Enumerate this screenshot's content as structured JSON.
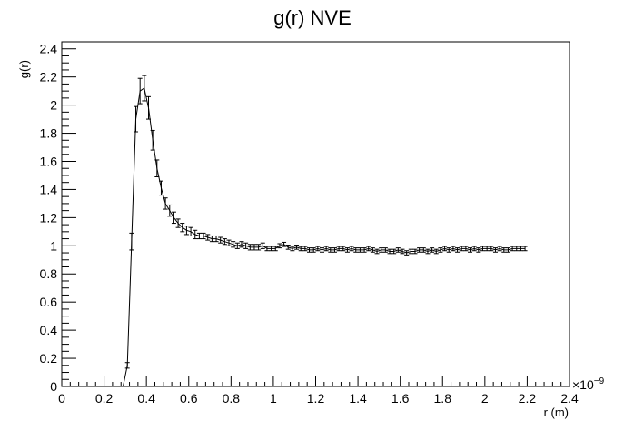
{
  "chart_data": {
    "type": "line",
    "title": "g(r) NVE",
    "xlabel": "r (m)",
    "ylabel": "g(r)",
    "x_exponent_label": "×10",
    "x_exponent_power": "−9",
    "xlim": [
      0,
      2.4
    ],
    "ylim": [
      0,
      2.45
    ],
    "xticks": [
      "0",
      "0.2",
      "0.4",
      "0.6",
      "0.8",
      "1",
      "1.2",
      "1.4",
      "1.6",
      "1.8",
      "2",
      "2.2",
      "2.4"
    ],
    "xtick_values": [
      0,
      0.2,
      0.4,
      0.6,
      0.8,
      1.0,
      1.2,
      1.4,
      1.6,
      1.8,
      2.0,
      2.2,
      2.4
    ],
    "yticks": [
      "0",
      "0.2",
      "0.4",
      "0.6",
      "0.8",
      "1",
      "1.2",
      "1.4",
      "1.6",
      "1.8",
      "2",
      "2.2",
      "2.4"
    ],
    "ytick_values": [
      0,
      0.2,
      0.4,
      0.6,
      0.8,
      1.0,
      1.2,
      1.4,
      1.6,
      1.8,
      2.0,
      2.2,
      2.4
    ],
    "grid": false,
    "series": [
      {
        "x": [
          0.01,
          0.03,
          0.05,
          0.07,
          0.09,
          0.11,
          0.13,
          0.15,
          0.17,
          0.19,
          0.21,
          0.23,
          0.25,
          0.27,
          0.29,
          0.31,
          0.33,
          0.35,
          0.37,
          0.39,
          0.41,
          0.43,
          0.45,
          0.47,
          0.49,
          0.51,
          0.53,
          0.55,
          0.57,
          0.59,
          0.61,
          0.63,
          0.65,
          0.67,
          0.69,
          0.71,
          0.73,
          0.75,
          0.77,
          0.79,
          0.81,
          0.83,
          0.85,
          0.87,
          0.89,
          0.91,
          0.93,
          0.95,
          0.97,
          0.99,
          1.01,
          1.03,
          1.05,
          1.07,
          1.09,
          1.11,
          1.13,
          1.15,
          1.17,
          1.19,
          1.21,
          1.23,
          1.25,
          1.27,
          1.29,
          1.31,
          1.33,
          1.35,
          1.37,
          1.39,
          1.41,
          1.43,
          1.45,
          1.47,
          1.49,
          1.51,
          1.53,
          1.55,
          1.57,
          1.59,
          1.61,
          1.63,
          1.65,
          1.67,
          1.69,
          1.71,
          1.73,
          1.75,
          1.77,
          1.79,
          1.81,
          1.83,
          1.85,
          1.87,
          1.89,
          1.91,
          1.93,
          1.95,
          1.97,
          1.99,
          2.01,
          2.03,
          2.05,
          2.07,
          2.09,
          2.11,
          2.13,
          2.15,
          2.17,
          2.19
        ],
        "y": [
          0,
          0,
          0,
          0,
          0,
          0,
          0,
          0,
          0,
          0,
          0,
          0,
          0,
          0,
          0,
          0.15,
          1.03,
          1.9,
          2.1,
          2.12,
          1.98,
          1.75,
          1.55,
          1.41,
          1.3,
          1.25,
          1.2,
          1.16,
          1.13,
          1.11,
          1.1,
          1.08,
          1.07,
          1.07,
          1.06,
          1.05,
          1.05,
          1.04,
          1.03,
          1.02,
          1.01,
          1.0,
          1.01,
          1.0,
          0.99,
          0.99,
          0.99,
          1.0,
          0.98,
          0.98,
          0.98,
          1.0,
          1.01,
          0.99,
          0.98,
          0.99,
          0.98,
          0.98,
          0.97,
          0.97,
          0.98,
          0.97,
          0.98,
          0.97,
          0.97,
          0.98,
          0.98,
          0.97,
          0.98,
          0.97,
          0.97,
          0.97,
          0.98,
          0.97,
          0.96,
          0.97,
          0.97,
          0.96,
          0.96,
          0.97,
          0.96,
          0.95,
          0.96,
          0.96,
          0.97,
          0.97,
          0.96,
          0.97,
          0.96,
          0.97,
          0.98,
          0.97,
          0.98,
          0.97,
          0.98,
          0.98,
          0.97,
          0.98,
          0.97,
          0.98,
          0.98,
          0.98,
          0.97,
          0.98,
          0.97,
          0.97,
          0.98,
          0.98,
          0.98,
          0.98
        ],
        "yerr": [
          0,
          0,
          0,
          0,
          0,
          0,
          0,
          0,
          0,
          0,
          0,
          0,
          0,
          0,
          0,
          0.02,
          0.06,
          0.09,
          0.09,
          0.09,
          0.08,
          0.07,
          0.06,
          0.05,
          0.04,
          0.04,
          0.04,
          0.03,
          0.03,
          0.03,
          0.03,
          0.03,
          0.02,
          0.02,
          0.02,
          0.02,
          0.02,
          0.02,
          0.02,
          0.02,
          0.02,
          0.02,
          0.02,
          0.02,
          0.02,
          0.02,
          0.02,
          0.02,
          0.015,
          0.015,
          0.015,
          0.015,
          0.015,
          0.015,
          0.015,
          0.015,
          0.015,
          0.015,
          0.015,
          0.015,
          0.015,
          0.015,
          0.015,
          0.015,
          0.015,
          0.015,
          0.015,
          0.015,
          0.015,
          0.015,
          0.015,
          0.015,
          0.015,
          0.015,
          0.015,
          0.015,
          0.015,
          0.015,
          0.015,
          0.015,
          0.015,
          0.015,
          0.015,
          0.015,
          0.015,
          0.015,
          0.015,
          0.015,
          0.015,
          0.015,
          0.015,
          0.015,
          0.015,
          0.015,
          0.015,
          0.015,
          0.015,
          0.015,
          0.015,
          0.015,
          0.015,
          0.015,
          0.015,
          0.015,
          0.015,
          0.015,
          0.015,
          0.015,
          0.015,
          0.015
        ]
      }
    ],
    "colors": {
      "line": "#000000",
      "axis": "#000000",
      "background": "#ffffff"
    }
  }
}
